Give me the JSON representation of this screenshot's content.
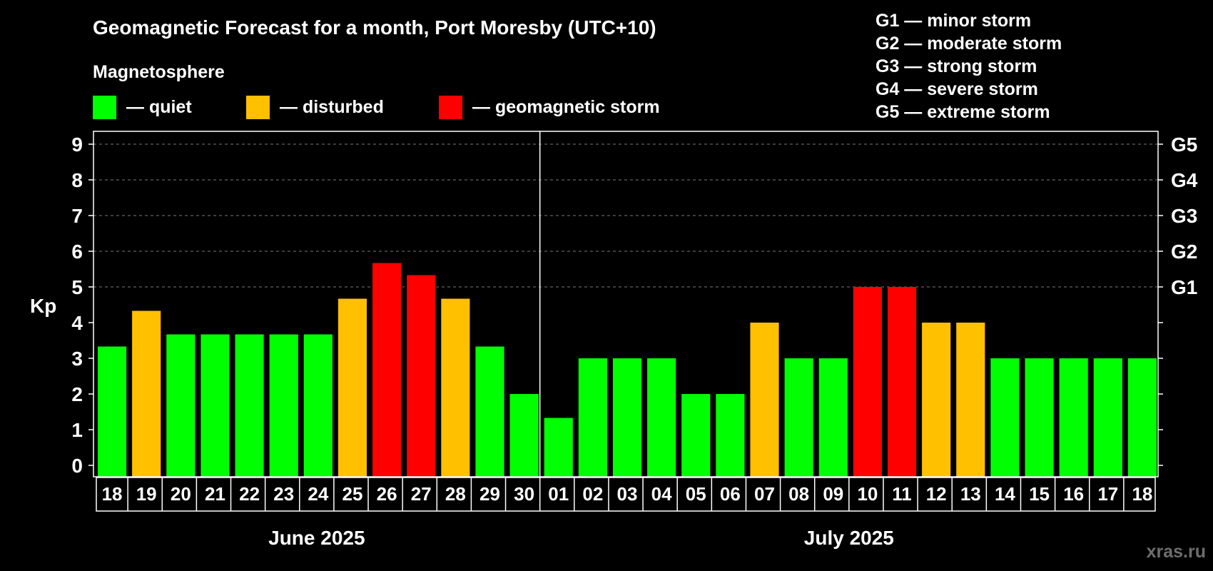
{
  "chart_data": {
    "type": "bar",
    "title": "Geomagnetic Forecast for a month, Port Moresby (UTC+10)",
    "ylabel": "Kp",
    "ylim": [
      0,
      9
    ],
    "yticks": [
      "0",
      "1",
      "2",
      "3",
      "4",
      "5",
      "6",
      "7",
      "8",
      "9"
    ],
    "grid": true,
    "legend": {
      "title": "Magnetosphere",
      "placement": "top-left",
      "items": [
        {
          "label": "— quiet",
          "color": "#00ff00"
        },
        {
          "label": "— disturbed",
          "color": "#ffc000"
        },
        {
          "label": "— geomagnetic storm",
          "color": "#ff0000"
        }
      ]
    },
    "storm_scale": [
      "G1 — minor storm",
      "G2 — moderate storm",
      "G3 — strong storm",
      "G4 — severe storm",
      "G5 — extreme storm"
    ],
    "right_axis": [
      {
        "label": "G1",
        "kp": 5
      },
      {
        "label": "G2",
        "kp": 6
      },
      {
        "label": "G3",
        "kp": 7
      },
      {
        "label": "G4",
        "kp": 8
      },
      {
        "label": "G5",
        "kp": 9
      }
    ],
    "months": [
      {
        "label": "June 2025",
        "days": 13
      },
      {
        "label": "July 2025",
        "days": 18
      }
    ],
    "categories": [
      "18",
      "19",
      "20",
      "21",
      "22",
      "23",
      "24",
      "25",
      "26",
      "27",
      "28",
      "29",
      "30",
      "01",
      "02",
      "03",
      "04",
      "05",
      "06",
      "07",
      "08",
      "09",
      "10",
      "11",
      "12",
      "13",
      "14",
      "15",
      "16",
      "17",
      "18"
    ],
    "values": [
      3.33,
      4.33,
      3.67,
      3.67,
      3.67,
      3.67,
      3.67,
      4.67,
      5.67,
      5.33,
      4.67,
      3.33,
      2.0,
      1.33,
      3.0,
      3.0,
      3.0,
      2.0,
      2.0,
      4.0,
      3.0,
      3.0,
      5.0,
      5.0,
      4.0,
      4.0,
      3.0,
      3.0,
      3.0,
      3.0,
      3.0
    ],
    "levels": [
      "quiet",
      "disturbed",
      "quiet",
      "quiet",
      "quiet",
      "quiet",
      "quiet",
      "disturbed",
      "storm",
      "storm",
      "disturbed",
      "quiet",
      "quiet",
      "quiet",
      "quiet",
      "quiet",
      "quiet",
      "quiet",
      "quiet",
      "disturbed",
      "quiet",
      "quiet",
      "storm",
      "storm",
      "disturbed",
      "disturbed",
      "quiet",
      "quiet",
      "quiet",
      "quiet",
      "quiet"
    ],
    "level_colors": {
      "quiet": "#00ff00",
      "disturbed": "#ffc000",
      "storm": "#ff0000"
    }
  },
  "watermark": "xras.ru"
}
